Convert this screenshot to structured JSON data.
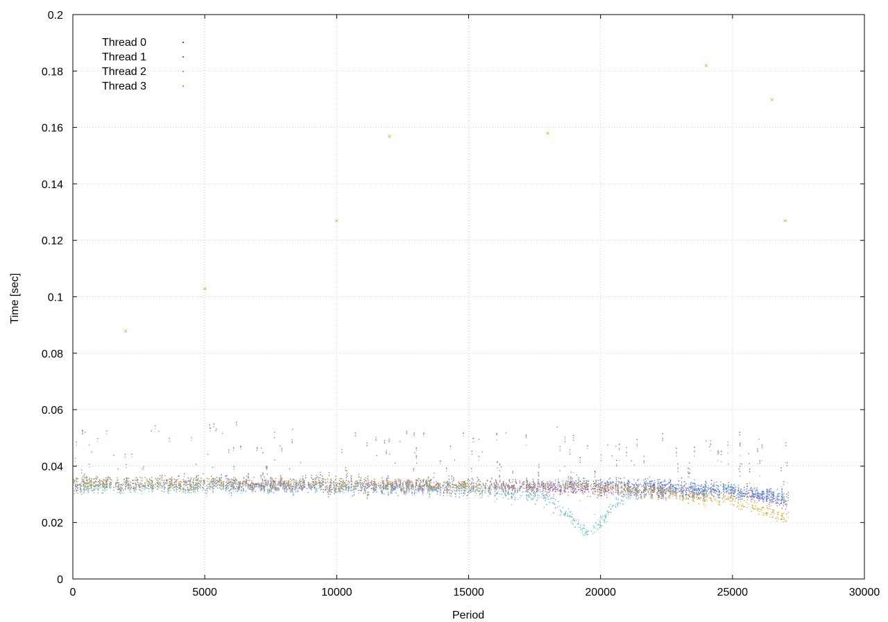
{
  "chart_data": {
    "type": "scatter",
    "title": "",
    "xlabel": "Period",
    "ylabel": "Time [sec]",
    "xlim": [
      0,
      30000
    ],
    "ylim": [
      0,
      0.2
    ],
    "xticks": [
      "0",
      "5000",
      "10000",
      "15000",
      "20000",
      "25000",
      "30000"
    ],
    "yticks": [
      "0",
      "0.02",
      "0.04",
      "0.06",
      "0.08",
      "0.1",
      "0.12",
      "0.14",
      "0.16",
      "0.18",
      "0.2"
    ],
    "grid": true,
    "legend_position": "top-left",
    "series": [
      {
        "name": "Thread 0",
        "color": "#7b3fb0",
        "points": [
          [
            5000,
            0.034
          ],
          [
            10000,
            0.033
          ],
          [
            15000,
            0.033
          ],
          [
            20000,
            0.032
          ],
          [
            25000,
            0.031
          ],
          [
            27000,
            0.028
          ]
        ]
      },
      {
        "name": "Thread 1",
        "color": "#3a6fd8",
        "points": [
          [
            5000,
            0.034
          ],
          [
            10000,
            0.034
          ],
          [
            15000,
            0.033
          ],
          [
            20000,
            0.034
          ],
          [
            25000,
            0.032
          ],
          [
            27000,
            0.029
          ]
        ]
      },
      {
        "name": "Thread 2",
        "color": "#5ab4d2",
        "points": [
          [
            5000,
            0.033
          ],
          [
            10000,
            0.033
          ],
          [
            15000,
            0.032
          ],
          [
            18000,
            0.029
          ],
          [
            19500,
            0.016
          ],
          [
            21000,
            0.031
          ],
          [
            25000,
            0.031
          ],
          [
            27000,
            0.029
          ]
        ]
      },
      {
        "name": "Thread 3",
        "color": "#d9a21e",
        "points": [
          [
            2000,
            0.088
          ],
          [
            5000,
            0.103
          ],
          [
            10000,
            0.127
          ],
          [
            12000,
            0.157
          ],
          [
            18000,
            0.158
          ],
          [
            24000,
            0.182
          ],
          [
            26500,
            0.17
          ],
          [
            27000,
            0.127
          ],
          [
            5000,
            0.034
          ],
          [
            10000,
            0.034
          ],
          [
            15000,
            0.033
          ],
          [
            20000,
            0.033
          ],
          [
            25000,
            0.028
          ],
          [
            27000,
            0.022
          ]
        ]
      }
    ]
  }
}
